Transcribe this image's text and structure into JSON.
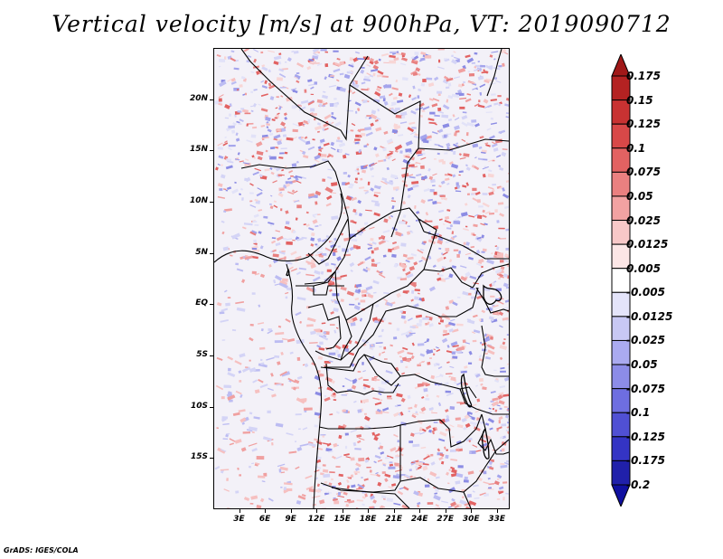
{
  "title": "Vertical velocity [m/s] at 900hPa, VT: 2019090712",
  "credit": "GrADS: IGES/COLA",
  "map": {
    "lon_range": [
      0,
      34.5
    ],
    "lat_range": [
      -20,
      25
    ],
    "x_ticks": [
      {
        "value": 3,
        "label": "3E"
      },
      {
        "value": 6,
        "label": "6E"
      },
      {
        "value": 9,
        "label": "9E"
      },
      {
        "value": 12,
        "label": "12E"
      },
      {
        "value": 15,
        "label": "15E"
      },
      {
        "value": 18,
        "label": "18E"
      },
      {
        "value": 21,
        "label": "21E"
      },
      {
        "value": 24,
        "label": "24E"
      },
      {
        "value": 27,
        "label": "27E"
      },
      {
        "value": 30,
        "label": "30E"
      },
      {
        "value": 33,
        "label": "33E"
      }
    ],
    "y_ticks": [
      {
        "value": 20,
        "label": "20N"
      },
      {
        "value": 15,
        "label": "15N"
      },
      {
        "value": 10,
        "label": "10N"
      },
      {
        "value": 5,
        "label": "5N"
      },
      {
        "value": 0,
        "label": "EQ"
      },
      {
        "value": -5,
        "label": "5S"
      },
      {
        "value": -10,
        "label": "10S"
      },
      {
        "value": -15,
        "label": "15S"
      }
    ]
  },
  "colorbar": {
    "levels": [
      "0.175",
      "0.15",
      "0.125",
      "0.1",
      "0.075",
      "0.05",
      "0.025",
      "0.0125",
      "0.005",
      "-0.005",
      "-0.0125",
      "-0.025",
      "-0.05",
      "-0.075",
      "-0.1",
      "-0.125",
      "-0.175",
      "-0.2"
    ],
    "colors": [
      "#a01818",
      "#b42222",
      "#c83232",
      "#d84848",
      "#e26262",
      "#ea8080",
      "#f2a2a2",
      "#f8c8c8",
      "#fce6e6",
      "#ffffff",
      "#e4e4fa",
      "#c8c8f4",
      "#aaaaf0",
      "#8c8ce8",
      "#6e6ee0",
      "#5050d4",
      "#3434c4",
      "#2020aa",
      "#1010a0"
    ]
  }
}
